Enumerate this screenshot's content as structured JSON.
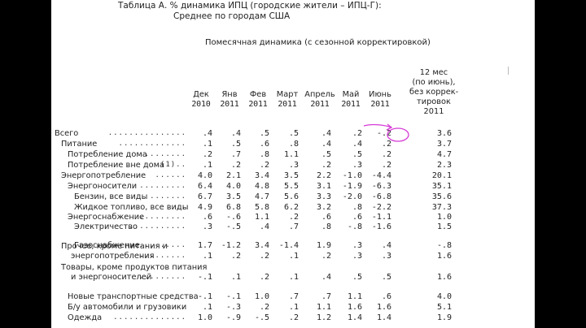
{
  "title_line1": "Таблица А. % динамика ИПЦ (городские жители – ИПЦ-Г):",
  "title_line2": "Среднее по городам США",
  "subtitle": "Помесячная динамика (с сезонной корректировкой)",
  "annual_header": [
    "12 мес",
    "(по июнь),",
    "без коррек-",
    "тировок",
    "2011"
  ],
  "columns": [
    {
      "m": "Дек",
      "y": "2010"
    },
    {
      "m": "Янв",
      "y": "2011"
    },
    {
      "m": "Фев",
      "y": "2011"
    },
    {
      "m": "Март",
      "y": "2011"
    },
    {
      "m": "Апрель",
      "y": "2011"
    },
    {
      "m": "Май",
      "y": "2011"
    },
    {
      "m": "Июнь",
      "y": "2011"
    }
  ],
  "rows": [
    {
      "label": "Всего",
      "indent": 0,
      "dots": "...............",
      "v": [
        ".4",
        ".4",
        ".5",
        ".5",
        ".4",
        ".2",
        "-.2",
        "3.6"
      ]
    },
    {
      "label": "Питание",
      "indent": 1,
      "dots": ".............",
      "v": [
        ".1",
        ".5",
        ".6",
        ".8",
        ".4",
        ".4",
        ".2",
        "3.7"
      ]
    },
    {
      "label": "Потребление дома",
      "indent": 2,
      "dots": "........",
      "v": [
        ".2",
        ".7",
        ".8",
        "1.1",
        ".5",
        ".5",
        ".2",
        "4.7"
      ]
    },
    {
      "label": "Потребление вне дома",
      "indent": 2,
      "dots": "(1)..",
      "v": [
        ".1",
        ".2",
        ".2",
        ".3",
        ".2",
        ".3",
        ".2",
        "2.3"
      ]
    },
    {
      "label": "Энергопотребление",
      "indent": 1,
      "dots": "......",
      "v": [
        "4.0",
        "2.1",
        "3.4",
        "3.5",
        "2.2",
        "-1.0",
        "-4.4",
        "20.1"
      ]
    },
    {
      "label": "Энергоносители",
      "indent": 2,
      "dots": ".........",
      "v": [
        "6.4",
        "4.0",
        "4.8",
        "5.5",
        "3.1",
        "-1.9",
        "-6.3",
        "35.1"
      ]
    },
    {
      "label": "Бензин, все виды",
      "indent": 3,
      "dots": ".......",
      "v": [
        "6.7",
        "3.5",
        "4.7",
        "5.6",
        "3.3",
        "-2.0",
        "-6.8",
        "35.6"
      ]
    },
    {
      "label": "Жидкое топливо, все виды",
      "indent": 3,
      "dots": "..",
      "v": [
        "4.9",
        "6.8",
        "5.8",
        "6.2",
        "3.2",
        ".8",
        "-2.2",
        "37.3"
      ]
    },
    {
      "label": "Энергоснабжение",
      "indent": 2,
      "dots": ".........",
      "v": [
        ".6",
        "-.6",
        "1.1",
        ".2",
        ".6",
        ".6",
        "-1.1",
        "1.0"
      ]
    },
    {
      "label": "Электричество",
      "indent": 3,
      "dots": "...........",
      "v": [
        ".3",
        "-.5",
        ".4",
        ".7",
        ".8",
        "-.8",
        "-1.6",
        "1.5"
      ]
    },
    {
      "label": "Газоснабжение",
      "indent": 3,
      "dots": "..........",
      "v": [
        "1.7",
        "-1.2",
        "3.4",
        "-1.4",
        "1.9",
        ".3",
        ".4",
        "-.8"
      ]
    },
    {
      "label": "Прочее, кроме питания и",
      "label2": "энергопотребления",
      "indent": 1,
      "dots": ".........",
      "v": [
        ".1",
        ".2",
        ".2",
        ".1",
        ".2",
        ".3",
        ".3",
        "1.6"
      ]
    },
    {
      "label": "Товары, кроме продуктов питания",
      "label2": "и энергоносителей",
      "indent": 1,
      "dots": ".........",
      "v": [
        "-.1",
        ".1",
        ".2",
        ".1",
        ".4",
        ".5",
        ".5",
        "1.6"
      ]
    },
    {
      "label": "Новые транспортные средства",
      "indent": 2,
      "dots": "",
      "v": [
        "-.1",
        "-.1",
        "1.0",
        ".7",
        ".7",
        "1.1",
        ".6",
        "4.0"
      ]
    },
    {
      "label": "Б/у автомобили и грузовики",
      "indent": 2,
      "dots": ".",
      "v": [
        ".1",
        "-.3",
        ".2",
        ".1",
        "1.1",
        "1.6",
        "1.6",
        "5.1"
      ]
    },
    {
      "label": "Одежда",
      "indent": 2,
      "dots": "..............",
      "v": [
        "1.0",
        "-.9",
        "-.5",
        ".2",
        "1.2",
        "1.4",
        "1.4",
        "1.9"
      ]
    }
  ],
  "colors": {
    "annotation": "#d63ad6",
    "page": "#ffffff",
    "frame": "#000000"
  }
}
